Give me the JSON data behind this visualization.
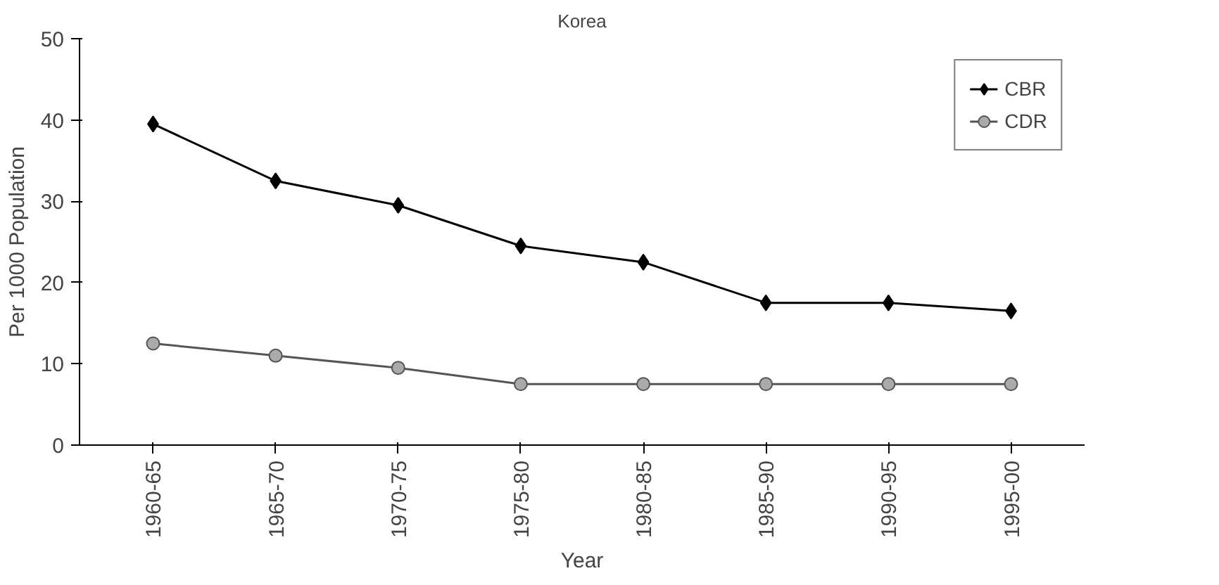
{
  "chart_data": {
    "type": "line",
    "title": "Korea",
    "xlabel": "Year",
    "ylabel": "Per 1000 Population",
    "categories": [
      "1960-65",
      "1965-70",
      "1970-75",
      "1975-80",
      "1980-85",
      "1985-90",
      "1990-95",
      "1995-00"
    ],
    "series": [
      {
        "name": "CBR",
        "color": "#000000",
        "marker": "diamond",
        "values": [
          39.5,
          32.5,
          29.5,
          24.5,
          22.5,
          17.5,
          17.5,
          16.5
        ]
      },
      {
        "name": "CDR",
        "color": "#555555",
        "marker": "circle",
        "values": [
          12.5,
          11,
          9.5,
          7.5,
          7.5,
          7.5,
          7.5,
          7.5
        ]
      }
    ],
    "ylim": [
      0,
      50
    ],
    "yticks": [
      0,
      10,
      20,
      30,
      40,
      50
    ],
    "grid": false,
    "legend": "top right",
    "line_style": "solid"
  }
}
